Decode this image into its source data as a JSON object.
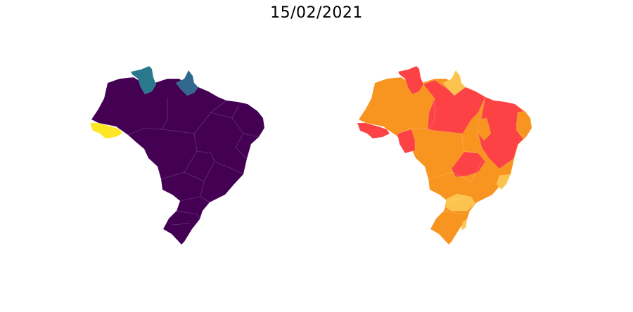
{
  "title": "15/02/2021",
  "palettes": {
    "left": {
      "base": "#440154",
      "teal_a": "#2a788e",
      "teal_b": "#31688e",
      "yellow": "#fde725"
    },
    "right": {
      "orange": "#f89520",
      "red": "#fc4245",
      "light": "#fcc44e"
    }
  }
}
